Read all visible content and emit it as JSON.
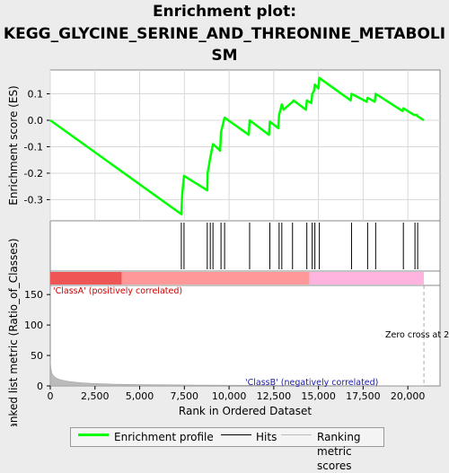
{
  "title_line1": "Enrichment plot:",
  "title_line2": "KEGG_GLYCINE_SERINE_AND_THREONINE_METABOLI",
  "title_line3": "SM",
  "colors": {
    "enrichment": "#00ff00",
    "hits": "#000000",
    "pos_strong": "#ee5555",
    "pos_light": "#ff9999",
    "neg": "#ffb3df",
    "metric_fill": "#bbbbbb"
  },
  "chart_data": [
    {
      "type": "line",
      "name": "enrichment-profile",
      "ylabel": "Enrichment score (ES)",
      "xlim": [
        0,
        21800
      ],
      "ylim": [
        -0.38,
        0.19
      ],
      "yticks": [
        "-0.3",
        "-0.2",
        "-0.1",
        "0.0",
        "0.1"
      ],
      "ytick_values": [
        -0.3,
        -0.2,
        -0.1,
        0.0,
        0.1
      ],
      "grid": true,
      "x": [
        0,
        7330,
        7380,
        7480,
        8780,
        8800,
        8950,
        9100,
        9500,
        9550,
        9750,
        11100,
        11150,
        12230,
        12280,
        12750,
        12800,
        12950,
        13050,
        13550,
        13600,
        14300,
        14350,
        14600,
        14650,
        14750,
        14800,
        15000,
        15050,
        16800,
        16850,
        17700,
        17750,
        18150,
        18200,
        19700,
        19750,
        20350,
        20400,
        20500,
        20550,
        20900
      ],
      "y": [
        0.0,
        -0.355,
        -0.28,
        -0.21,
        -0.265,
        -0.2,
        -0.14,
        -0.09,
        -0.115,
        -0.045,
        0.01,
        -0.055,
        0.0,
        -0.055,
        -0.005,
        -0.03,
        0.02,
        0.06,
        0.04,
        0.07,
        0.075,
        0.04,
        0.075,
        0.065,
        0.1,
        0.11,
        0.135,
        0.12,
        0.16,
        0.075,
        0.1,
        0.07,
        0.085,
        0.07,
        0.1,
        0.035,
        0.045,
        0.02,
        0.02,
        0.02,
        0.015,
        0.0
      ]
    },
    {
      "type": "scatter",
      "name": "hits",
      "x": [
        7330,
        7480,
        8780,
        8950,
        9100,
        9550,
        9750,
        11150,
        12280,
        12800,
        12950,
        13550,
        14350,
        14650,
        14800,
        15050,
        16850,
        17750,
        18200,
        19750,
        20400,
        20550
      ]
    },
    {
      "type": "area",
      "name": "ranked-list-metric",
      "ylabel": "Ranked list metric (Ratio_of_Classes)",
      "xlabel": "Rank in Ordered Dataset",
      "xlim": [
        0,
        21800
      ],
      "ylim": [
        0,
        165
      ],
      "xticks": [
        "0",
        "2,500",
        "5,000",
        "7,500",
        "10,000",
        "12,500",
        "15,000",
        "17,500",
        "20,000"
      ],
      "xtick_values": [
        0,
        2500,
        5000,
        7500,
        10000,
        12500,
        15000,
        17500,
        20000
      ],
      "yticks": [
        "0",
        "50",
        "100",
        "150"
      ],
      "ytick_values": [
        0,
        50,
        100,
        150
      ],
      "x": [
        0,
        30,
        80,
        150,
        250,
        400,
        600,
        900,
        1300,
        1800,
        2500,
        3500,
        5000,
        8000,
        12000,
        16000,
        20000,
        20900
      ],
      "y": [
        42,
        30,
        22,
        18,
        15,
        12,
        10,
        8,
        6.5,
        5,
        4,
        3,
        2.2,
        1.5,
        1,
        0.6,
        0.3,
        0
      ],
      "labels": {
        "class_a": "'ClassA' (positively correlated)",
        "class_b": "'ClassB' (negatively correlated)",
        "zero_cross": "Zero cross at 2"
      },
      "zero_cross_x": 20900
    }
  ],
  "color_bar": {
    "strong_end": 4000,
    "pos_end": 14500,
    "neg_end": 20900
  },
  "legend": {
    "enrichment": "Enrichment profile",
    "hits": "Hits",
    "ranking": "Ranking metric scores"
  }
}
